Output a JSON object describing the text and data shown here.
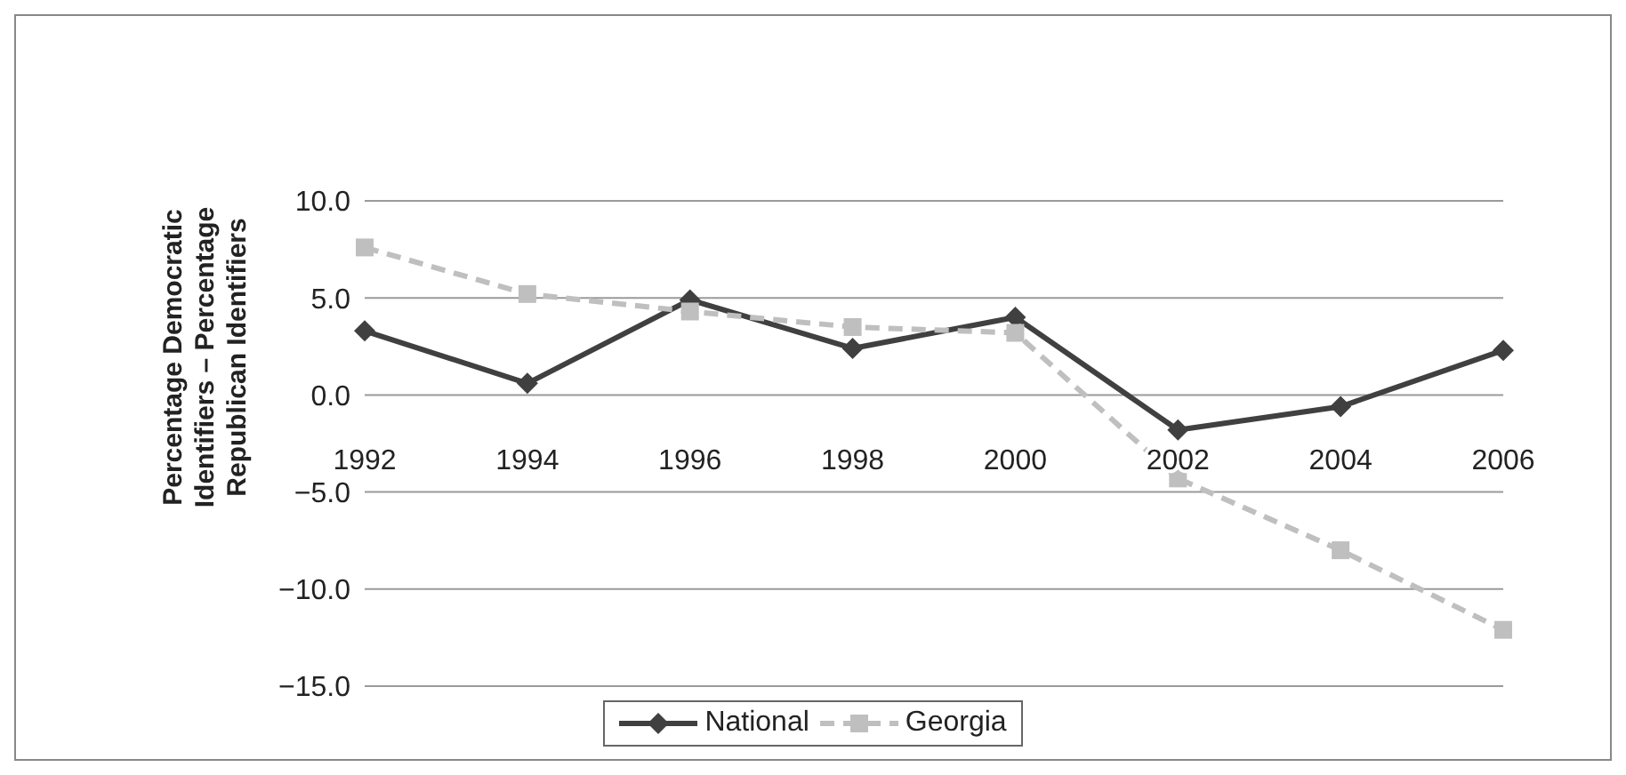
{
  "chart_data": {
    "type": "line",
    "ylabel": "Percentage Democratic Identifiers – Percentage Republican Identifiers",
    "categories": [
      "1992",
      "1994",
      "1996",
      "1998",
      "2000",
      "2002",
      "2004",
      "2006"
    ],
    "series": [
      {
        "name": "National",
        "color": "#404040",
        "marker": "diamond",
        "line_style": "solid",
        "values": [
          3.3,
          0.6,
          4.9,
          2.4,
          4.0,
          -1.8,
          -0.6,
          2.3
        ]
      },
      {
        "name": "Georgia",
        "color": "#bfbfbf",
        "marker": "square",
        "line_style": "dashed",
        "values": [
          7.6,
          5.2,
          4.3,
          3.5,
          3.2,
          -4.3,
          -8.0,
          -12.1
        ]
      }
    ],
    "ylim": [
      -15,
      10
    ],
    "yticks": [
      {
        "value": -15,
        "label": "−15.0"
      },
      {
        "value": -10,
        "label": "−10.0"
      },
      {
        "value": -5,
        "label": "−5.0"
      },
      {
        "value": 0,
        "label": "0.0"
      },
      {
        "value": 5,
        "label": "5.0"
      },
      {
        "value": 10,
        "label": "10.0"
      }
    ],
    "grid": "y",
    "legend": "bottom"
  }
}
